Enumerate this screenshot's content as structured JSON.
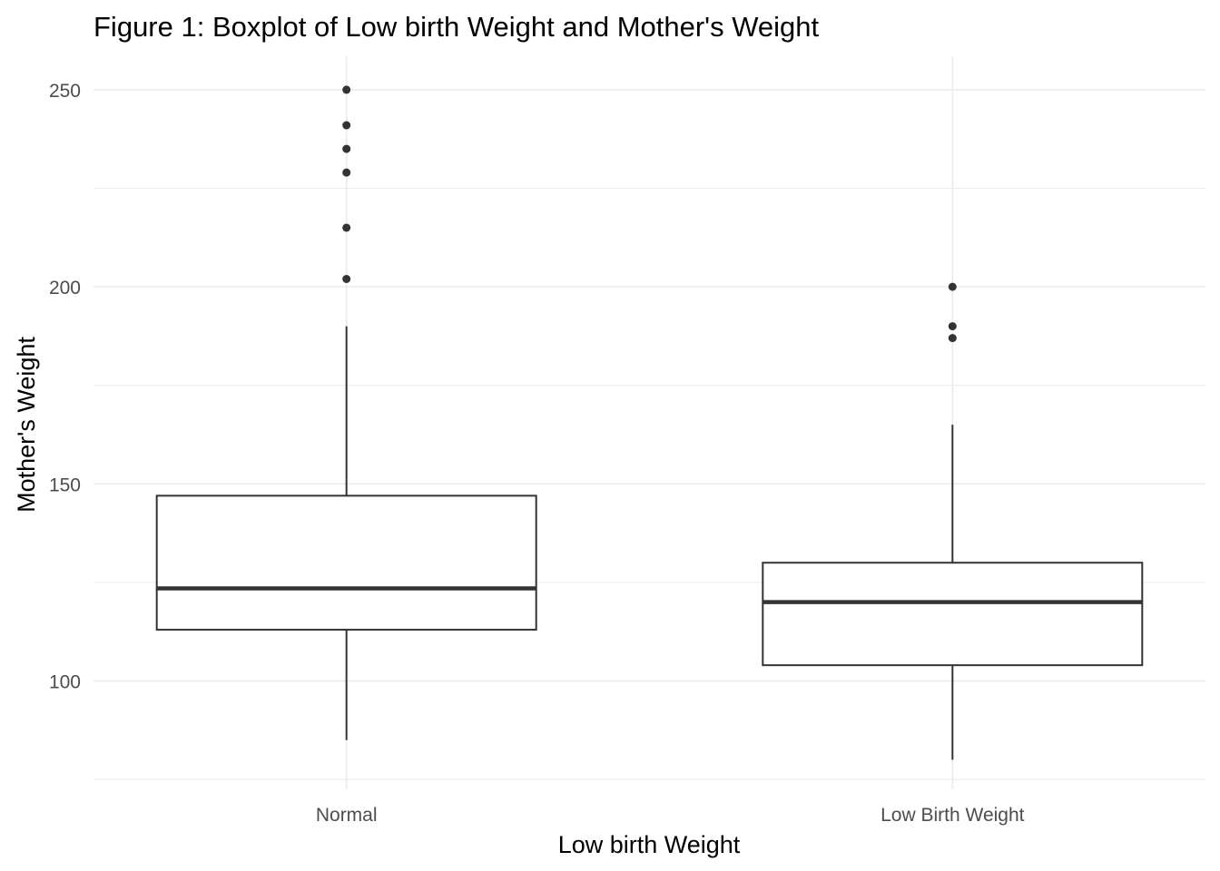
{
  "chart_data": {
    "type": "boxplot",
    "title": "Figure 1: Boxplot of Low birth Weight and Mother's Weight",
    "xlabel": "Low birth Weight",
    "ylabel": "Mother's Weight",
    "ylim": [
      72.5,
      258.5
    ],
    "y_ticks": [
      100,
      150,
      200,
      250
    ],
    "grid": true,
    "categories": [
      "Normal",
      "Low Birth Weight"
    ],
    "boxes": [
      {
        "category": "Normal",
        "whisker_low": 85,
        "q1": 113,
        "median": 123.5,
        "q3": 147,
        "whisker_high": 190,
        "outliers": [
          202,
          215,
          229,
          235,
          241,
          250
        ]
      },
      {
        "category": "Low Birth Weight",
        "whisker_low": 80,
        "q1": 104,
        "median": 120,
        "q3": 130,
        "whisker_high": 165,
        "outliers": [
          187,
          190,
          200
        ]
      }
    ],
    "colors": {
      "box_line": "#333333",
      "box_fill": "#ffffff",
      "grid": "#ebebeb",
      "tick_label": "#4d4d4d",
      "text": "#000000"
    }
  }
}
